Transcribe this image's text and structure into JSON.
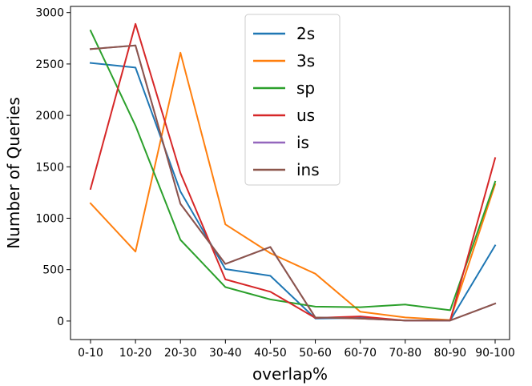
{
  "chart_data": {
    "type": "line",
    "title": "",
    "xlabel": "overlap%",
    "ylabel": "Number of Queries",
    "categories": [
      "0-10",
      "10-20",
      "20-30",
      "30-40",
      "40-50",
      "50-60",
      "60-70",
      "70-80",
      "80-90",
      "90-100"
    ],
    "ylim": [
      -180,
      3060
    ],
    "yticks": [
      0,
      500,
      1000,
      1500,
      2000,
      2500,
      3000
    ],
    "grid": false,
    "legend_position": "top-center",
    "series": [
      {
        "name": "2s",
        "color": "#1f77b4",
        "values": [
          2510,
          2465,
          1260,
          505,
          440,
          25,
          30,
          5,
          5,
          735
        ]
      },
      {
        "name": "3s",
        "color": "#ff7f0e",
        "values": [
          1145,
          675,
          2610,
          940,
          660,
          460,
          90,
          35,
          10,
          1330
        ]
      },
      {
        "name": "sp",
        "color": "#2ca02c",
        "values": [
          2825,
          1900,
          790,
          330,
          210,
          140,
          135,
          160,
          105,
          1355
        ]
      },
      {
        "name": "us",
        "color": "#d62728",
        "values": [
          1285,
          2890,
          1440,
          405,
          285,
          30,
          45,
          5,
          5,
          1585
        ]
      },
      {
        "name": "is",
        "color": "#9467bd",
        "values": [
          2645,
          2680,
          1140,
          555,
          720,
          35,
          25,
          5,
          5,
          170
        ]
      },
      {
        "name": "ins",
        "color": "#8c564b",
        "values": [
          2645,
          2680,
          1140,
          555,
          720,
          35,
          25,
          5,
          5,
          170
        ]
      }
    ]
  }
}
